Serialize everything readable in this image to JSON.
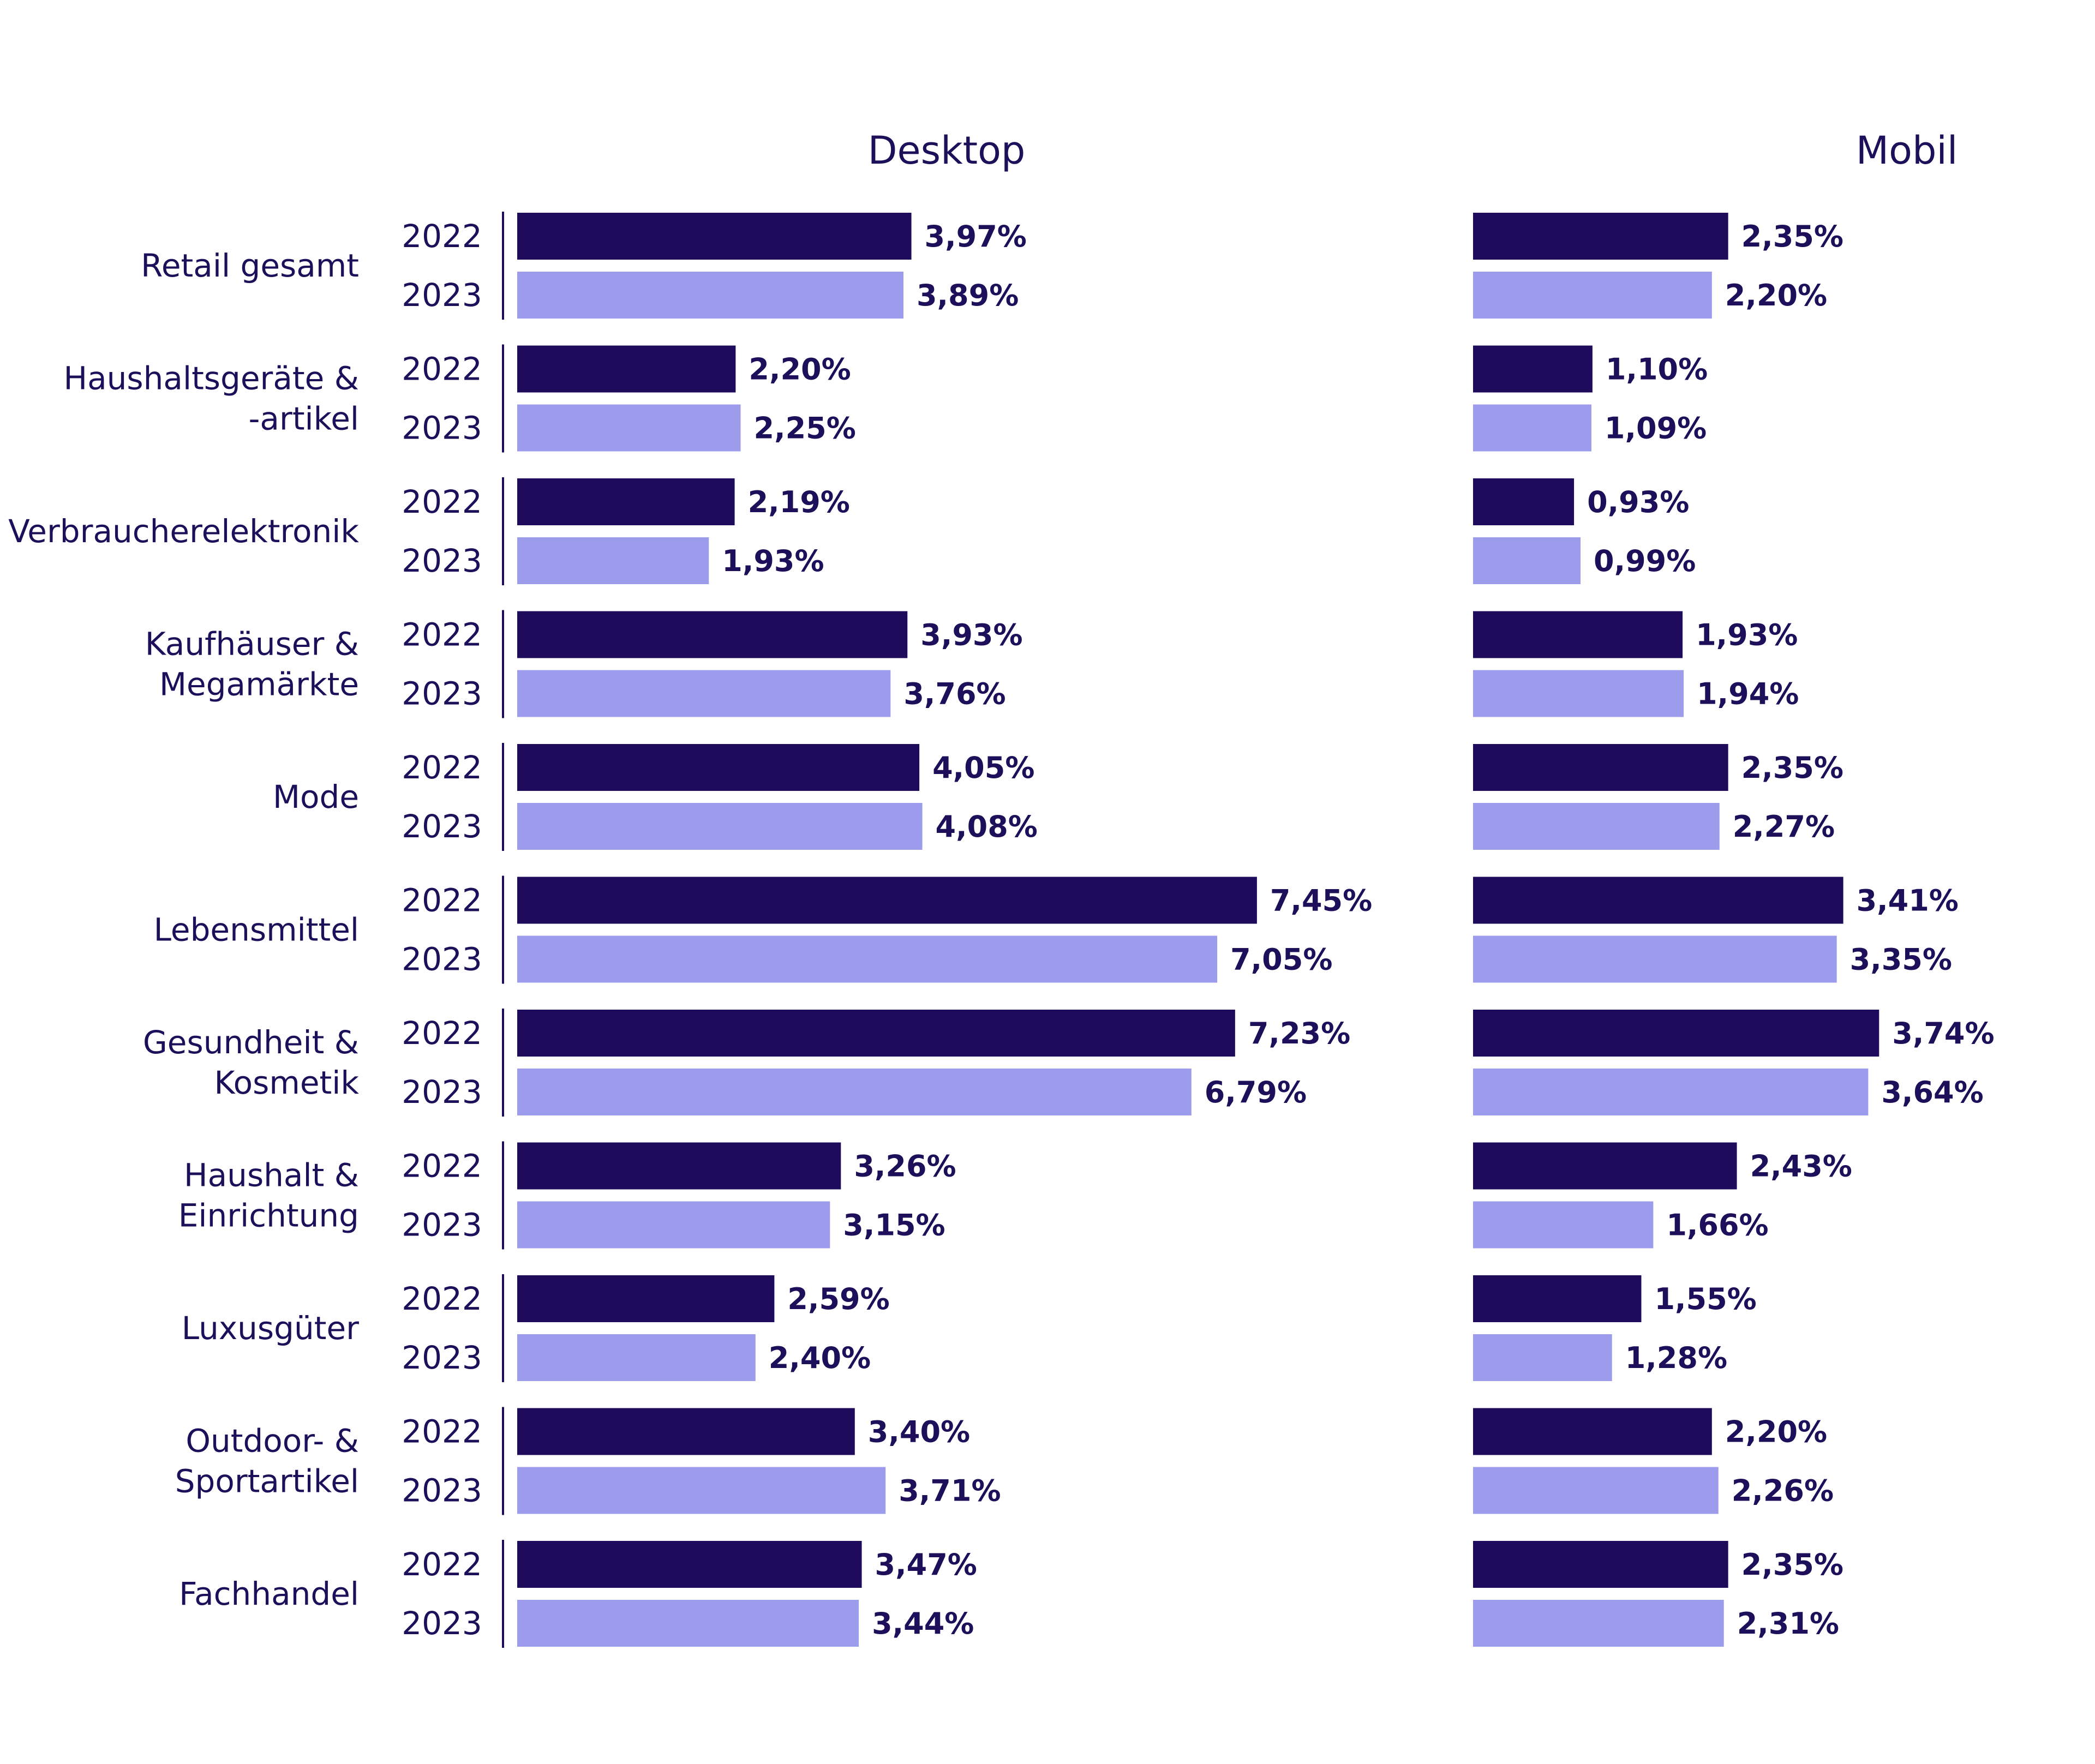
{
  "chart_data": {
    "type": "bar",
    "orientation": "horizontal",
    "categories": [
      [
        "Retail gesamt"
      ],
      [
        "Haushaltsgeräte &",
        "-artikel"
      ],
      [
        "Verbraucherelektronik"
      ],
      [
        "Kaufhäuser &",
        "Megamärkte"
      ],
      [
        "Mode"
      ],
      [
        "Lebensmittel"
      ],
      [
        "Gesundheit &",
        "Kosmetik"
      ],
      [
        "Haushalt &",
        "Einrichtung"
      ],
      [
        "Luxusgüter"
      ],
      [
        "Outdoor- &",
        "Sportartikel"
      ],
      [
        "Fachhandel"
      ]
    ],
    "years": [
      "2022",
      "2023"
    ],
    "colors": {
      "2022": "#1e0b5c",
      "2023": "#9c9bec"
    },
    "panels": [
      {
        "title": "Desktop",
        "xlim": [
          0,
          8
        ],
        "series": [
          {
            "name": "2022",
            "values": [
              3.97,
              2.2,
              2.19,
              3.93,
              4.05,
              7.45,
              7.23,
              3.26,
              2.59,
              3.4,
              3.47
            ],
            "labels": [
              "3,97%",
              "2,20%",
              "2,19%",
              "3,93%",
              "4,05%",
              "7,45%",
              "7,23%",
              "3,26%",
              "2,59%",
              "3,40%",
              "3,47%"
            ]
          },
          {
            "name": "2023",
            "values": [
              3.89,
              2.25,
              1.93,
              3.76,
              4.08,
              7.05,
              6.79,
              3.15,
              2.4,
              3.71,
              3.44
            ],
            "labels": [
              "3,89%",
              "2,25%",
              "1,93%",
              "3,76%",
              "4,08%",
              "7,05%",
              "6,79%",
              "3,15%",
              "2,40%",
              "3,71%",
              "3,44%"
            ]
          }
        ]
      },
      {
        "title": "Mobil",
        "xlim": [
          0,
          8
        ],
        "series": [
          {
            "name": "2022",
            "values": [
              2.35,
              1.1,
              0.93,
              1.93,
              2.35,
              3.41,
              3.74,
              2.43,
              1.55,
              2.2,
              2.35
            ],
            "labels": [
              "2,35%",
              "1,10%",
              "0,93%",
              "1,93%",
              "2,35%",
              "3,41%",
              "3,74%",
              "2,43%",
              "1,55%",
              "2,20%",
              "2,35%"
            ]
          },
          {
            "name": "2023",
            "values": [
              2.2,
              1.09,
              0.99,
              1.94,
              2.27,
              3.35,
              3.64,
              1.66,
              1.28,
              2.26,
              2.31
            ],
            "labels": [
              "2,20%",
              "1,09%",
              "0,99%",
              "1,94%",
              "2,27%",
              "3,35%",
              "3,64%",
              "1,66%",
              "1,28%",
              "2,26%",
              "2,31%"
            ]
          }
        ]
      }
    ]
  }
}
